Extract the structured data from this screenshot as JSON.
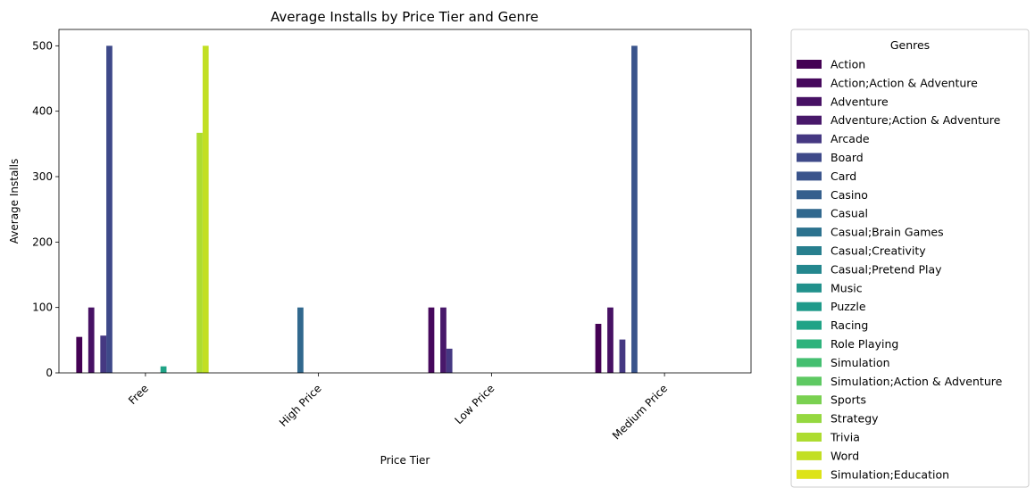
{
  "chart_data": {
    "type": "bar",
    "title": "Average Installs by Price Tier and Genre",
    "xlabel": "Price Tier",
    "ylabel": "Average Installs",
    "categories": [
      "Free",
      "High Price",
      "Low Price",
      "Medium Price"
    ],
    "ylim": [
      0,
      525
    ],
    "yticks": [
      0,
      100,
      200,
      300,
      400,
      500
    ],
    "legend_title": "Genres",
    "legend_position": "outside-right",
    "series": [
      {
        "name": "Action",
        "color": "#440154",
        "values": [
          55,
          0,
          0,
          75
        ]
      },
      {
        "name": "Action;Action & Adventure",
        "color": "#46085c",
        "values": [
          0,
          0,
          100,
          0
        ]
      },
      {
        "name": "Adventure",
        "color": "#471164",
        "values": [
          100,
          0,
          0,
          100
        ]
      },
      {
        "name": "Adventure;Action & Adventure",
        "color": "#48186a",
        "values": [
          0,
          0,
          100,
          0
        ]
      },
      {
        "name": "Arcade",
        "color": "#453882",
        "values": [
          57,
          0,
          37,
          51
        ]
      },
      {
        "name": "Board",
        "color": "#3e4989",
        "values": [
          500,
          0,
          0,
          0
        ]
      },
      {
        "name": "Card",
        "color": "#3a548c",
        "values": [
          0,
          0,
          0,
          500
        ]
      },
      {
        "name": "Casino",
        "color": "#355f8d",
        "values": [
          0,
          0,
          0,
          0
        ]
      },
      {
        "name": "Casual",
        "color": "#31688e",
        "values": [
          0,
          100,
          0,
          0
        ]
      },
      {
        "name": "Casual;Brain Games",
        "color": "#2c728e",
        "values": [
          0,
          0,
          0,
          0
        ]
      },
      {
        "name": "Casual;Creativity",
        "color": "#277f8e",
        "values": [
          0,
          0,
          0,
          0
        ]
      },
      {
        "name": "Casual;Pretend Play",
        "color": "#24878e",
        "values": [
          0,
          0,
          0,
          0
        ]
      },
      {
        "name": "Music",
        "color": "#21918c",
        "values": [
          0,
          0,
          0,
          0
        ]
      },
      {
        "name": "Puzzle",
        "color": "#1f9a8a",
        "values": [
          0,
          0,
          0,
          0
        ]
      },
      {
        "name": "Racing",
        "color": "#20a386",
        "values": [
          10,
          0,
          0,
          0
        ]
      },
      {
        "name": "Role Playing",
        "color": "#2eb37c",
        "values": [
          0,
          0,
          0,
          0
        ]
      },
      {
        "name": "Simulation",
        "color": "#44bf70",
        "values": [
          0,
          0,
          0,
          0
        ]
      },
      {
        "name": "Simulation;Action & Adventure",
        "color": "#5ec962",
        "values": [
          0,
          0,
          0,
          0
        ]
      },
      {
        "name": "Sports",
        "color": "#7ad151",
        "values": [
          0,
          0,
          0,
          0
        ]
      },
      {
        "name": "Strategy",
        "color": "#95d840",
        "values": [
          0,
          0,
          0,
          0
        ]
      },
      {
        "name": "Trivia",
        "color": "#addc30",
        "values": [
          367,
          0,
          0,
          0
        ]
      },
      {
        "name": "Word",
        "color": "#c2df23",
        "values": [
          500,
          0,
          0,
          0
        ]
      },
      {
        "name": "Simulation;Education",
        "color": "#dde318",
        "values": [
          0,
          0,
          0,
          0
        ]
      }
    ]
  }
}
